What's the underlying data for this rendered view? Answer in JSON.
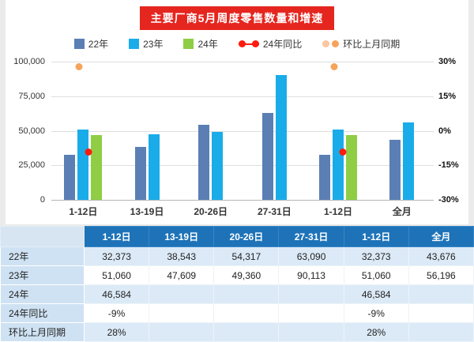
{
  "colors": {
    "title_bg": "#e5261f",
    "series_22": "#5b7fb4",
    "series_23": "#1aace9",
    "series_24": "#8fce44",
    "yoy_red": "#fe1b10",
    "mom_orange": "#f6a35c",
    "mom_orange_light": "#fbc79e",
    "table_header_bg": "#1e73b8",
    "table_label_bg": "#cfe2f3",
    "table_stripe_bg": "#dceaf7",
    "table_corner_bg": "#d7e5f2"
  },
  "legend": {
    "items": [
      {
        "label": "22年",
        "type": "square",
        "color": "#5b7fb4"
      },
      {
        "label": "23年",
        "type": "square",
        "color": "#1aace9"
      },
      {
        "label": "24年",
        "type": "square",
        "color": "#8fce44"
      },
      {
        "label": "24年同比",
        "type": "line-dots",
        "color": "#fe1b10"
      },
      {
        "label": "环比上月同期",
        "type": "dots",
        "colors": [
          "#fbc79e",
          "#f6a35c"
        ]
      }
    ]
  },
  "chart_data": {
    "type": "bar",
    "title": "主要厂商5月周度零售数量和增速",
    "categories": [
      "1-12日",
      "13-19日",
      "20-26日",
      "27-31日",
      "1-12日",
      "全月"
    ],
    "series": [
      {
        "name": "22年",
        "color": "#5b7fb4",
        "values": [
          32373,
          38543,
          54317,
          63090,
          32373,
          43676
        ]
      },
      {
        "name": "23年",
        "color": "#1aace9",
        "values": [
          51060,
          47609,
          49360,
          90113,
          51060,
          56196
        ]
      },
      {
        "name": "24年",
        "color": "#8fce44",
        "values": [
          46584,
          null,
          null,
          null,
          46584,
          null
        ]
      }
    ],
    "point_series": [
      {
        "name": "24年同比",
        "color": "#fe1b10",
        "axis": "right",
        "offset": 58,
        "values": [
          -9,
          null,
          null,
          null,
          -9,
          null
        ]
      },
      {
        "name": "环比上月同期",
        "color": "#f6a35c",
        "axis": "right",
        "offset": 44,
        "values": [
          28,
          null,
          null,
          null,
          28,
          null
        ]
      }
    ],
    "left_axis": {
      "min": 0,
      "max": 100000,
      "ticks": [
        "100,000",
        "75,000",
        "50,000",
        "25,000",
        "0"
      ]
    },
    "right_axis": {
      "min": -30,
      "max": 30,
      "ticks": [
        "30%",
        "15%",
        "0%",
        "-15%",
        "-30%"
      ]
    },
    "grid": true,
    "legend_position": "top"
  },
  "table": {
    "headers": [
      "",
      "1-12日",
      "13-19日",
      "20-26日",
      "27-31日",
      "1-12日",
      "全月"
    ],
    "rows": [
      {
        "label": "22年",
        "values": [
          "32,373",
          "38,543",
          "54,317",
          "63,090",
          "32,373",
          "43,676"
        ]
      },
      {
        "label": "23年",
        "values": [
          "51,060",
          "47,609",
          "49,360",
          "90,113",
          "51,060",
          "56,196"
        ]
      },
      {
        "label": "24年",
        "values": [
          "46,584",
          "",
          "",
          "",
          "46,584",
          ""
        ]
      },
      {
        "label": "24年同比",
        "values": [
          "-9%",
          "",
          "",
          "",
          "-9%",
          ""
        ]
      },
      {
        "label": "环比上月同期",
        "values": [
          "28%",
          "",
          "",
          "",
          "28%",
          ""
        ]
      }
    ]
  }
}
